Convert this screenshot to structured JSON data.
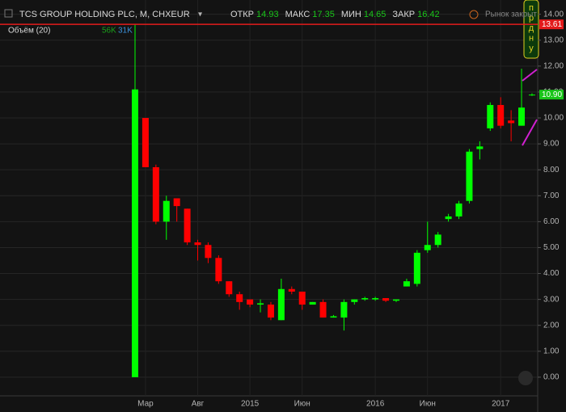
{
  "chart_data": {
    "type": "candlestick",
    "title": "TCS GROUP HOLDING PLC, M, CHXEUR",
    "legend": [
      {
        "label": "ОТКР",
        "value": "14.93"
      },
      {
        "label": "МАКС",
        "value": "17.35"
      },
      {
        "label": "МИН",
        "value": "14.65"
      },
      {
        "label": "ЗАКР",
        "value": "16.42"
      }
    ],
    "volume_label": "Объём (20)",
    "volume_values": [
      "56K",
      "31K"
    ],
    "market_status": "Рынок закрыт",
    "annotation": [
      "п",
      "р",
      "д",
      "н",
      "у"
    ],
    "categories": [
      null,
      "Мар",
      null,
      null,
      null,
      null,
      "Авг",
      null,
      null,
      null,
      null,
      "2015",
      null,
      null,
      null,
      null,
      "Июн",
      null,
      null,
      null,
      null,
      null,
      null,
      "2016",
      null,
      null,
      null,
      null,
      "Июн",
      null,
      null,
      null,
      null,
      null,
      null,
      "2017",
      null,
      null,
      null
    ],
    "open": [
      0,
      10.0,
      8.1,
      6.0,
      6.9,
      6.5,
      5.2,
      5.1,
      4.6,
      3.7,
      3.2,
      3.0,
      2.8,
      2.8,
      2.2,
      3.4,
      3.3,
      2.8,
      2.9,
      2.3,
      2.3,
      2.9,
      3.0,
      3.0,
      3.05,
      2.95,
      3.5,
      3.6,
      4.9,
      5.1,
      6.1,
      6.2,
      6.8,
      8.8,
      9.6,
      10.5,
      9.9,
      9.7,
      10.9
    ],
    "high": [
      13.6,
      10.0,
      8.2,
      7.0,
      6.9,
      6.5,
      5.3,
      5.2,
      4.7,
      3.7,
      3.3,
      3.0,
      3.0,
      2.9,
      3.8,
      3.5,
      3.3,
      2.9,
      3.0,
      2.4,
      3.0,
      3.0,
      3.1,
      3.1,
      3.05,
      3.0,
      3.8,
      4.9,
      6.0,
      5.6,
      6.3,
      6.8,
      8.8,
      9.1,
      10.6,
      10.8,
      10.3,
      11.9,
      10.95
    ],
    "low": [
      0,
      8.1,
      5.9,
      5.3,
      6.0,
      5.1,
      4.5,
      4.4,
      3.6,
      3.1,
      2.6,
      2.7,
      2.5,
      2.2,
      2.2,
      3.2,
      2.6,
      2.8,
      2.3,
      2.3,
      1.8,
      2.8,
      2.95,
      2.95,
      2.9,
      2.9,
      3.5,
      3.5,
      4.8,
      5.0,
      6.0,
      6.1,
      6.7,
      8.4,
      9.5,
      9.6,
      9.1,
      9.7,
      10.85
    ],
    "close": [
      11.1,
      8.1,
      6.0,
      6.8,
      6.6,
      5.2,
      5.1,
      4.6,
      3.7,
      3.2,
      2.9,
      2.8,
      2.85,
      2.3,
      3.4,
      3.3,
      2.8,
      2.9,
      2.3,
      2.35,
      2.9,
      3.0,
      3.05,
      3.05,
      2.95,
      3.0,
      3.7,
      4.8,
      5.1,
      5.5,
      6.2,
      6.7,
      8.7,
      8.9,
      10.5,
      9.7,
      9.8,
      10.4,
      10.9
    ],
    "up_color": "#00ff00",
    "down_color": "#ff0000",
    "price_lines": [
      {
        "value": 13.61,
        "label": "13.61",
        "color": "#e31b1b"
      },
      {
        "value": 10.9,
        "label": "10.90",
        "color": "#19c419"
      }
    ],
    "ylim": [
      -0.72,
      14.55
    ],
    "yticks": [
      {
        "value": 0,
        "label": "0.00"
      },
      {
        "value": 1,
        "label": "1.00"
      },
      {
        "value": 2,
        "label": "2.00"
      },
      {
        "value": 3,
        "label": "3.00"
      },
      {
        "value": 4,
        "label": "4.00"
      },
      {
        "value": 5,
        "label": "5.00"
      },
      {
        "value": 6,
        "label": "6.00"
      },
      {
        "value": 7,
        "label": "7.00"
      },
      {
        "value": 8,
        "label": "8.00"
      },
      {
        "value": 9,
        "label": "9.00"
      },
      {
        "value": 10,
        "label": "10.00"
      },
      {
        "value": 11,
        "label": "11.00"
      },
      {
        "value": 12,
        "label": "12.00"
      },
      {
        "value": 13,
        "label": "13.00"
      },
      {
        "value": 14,
        "label": "14.00"
      }
    ],
    "grid": true
  }
}
